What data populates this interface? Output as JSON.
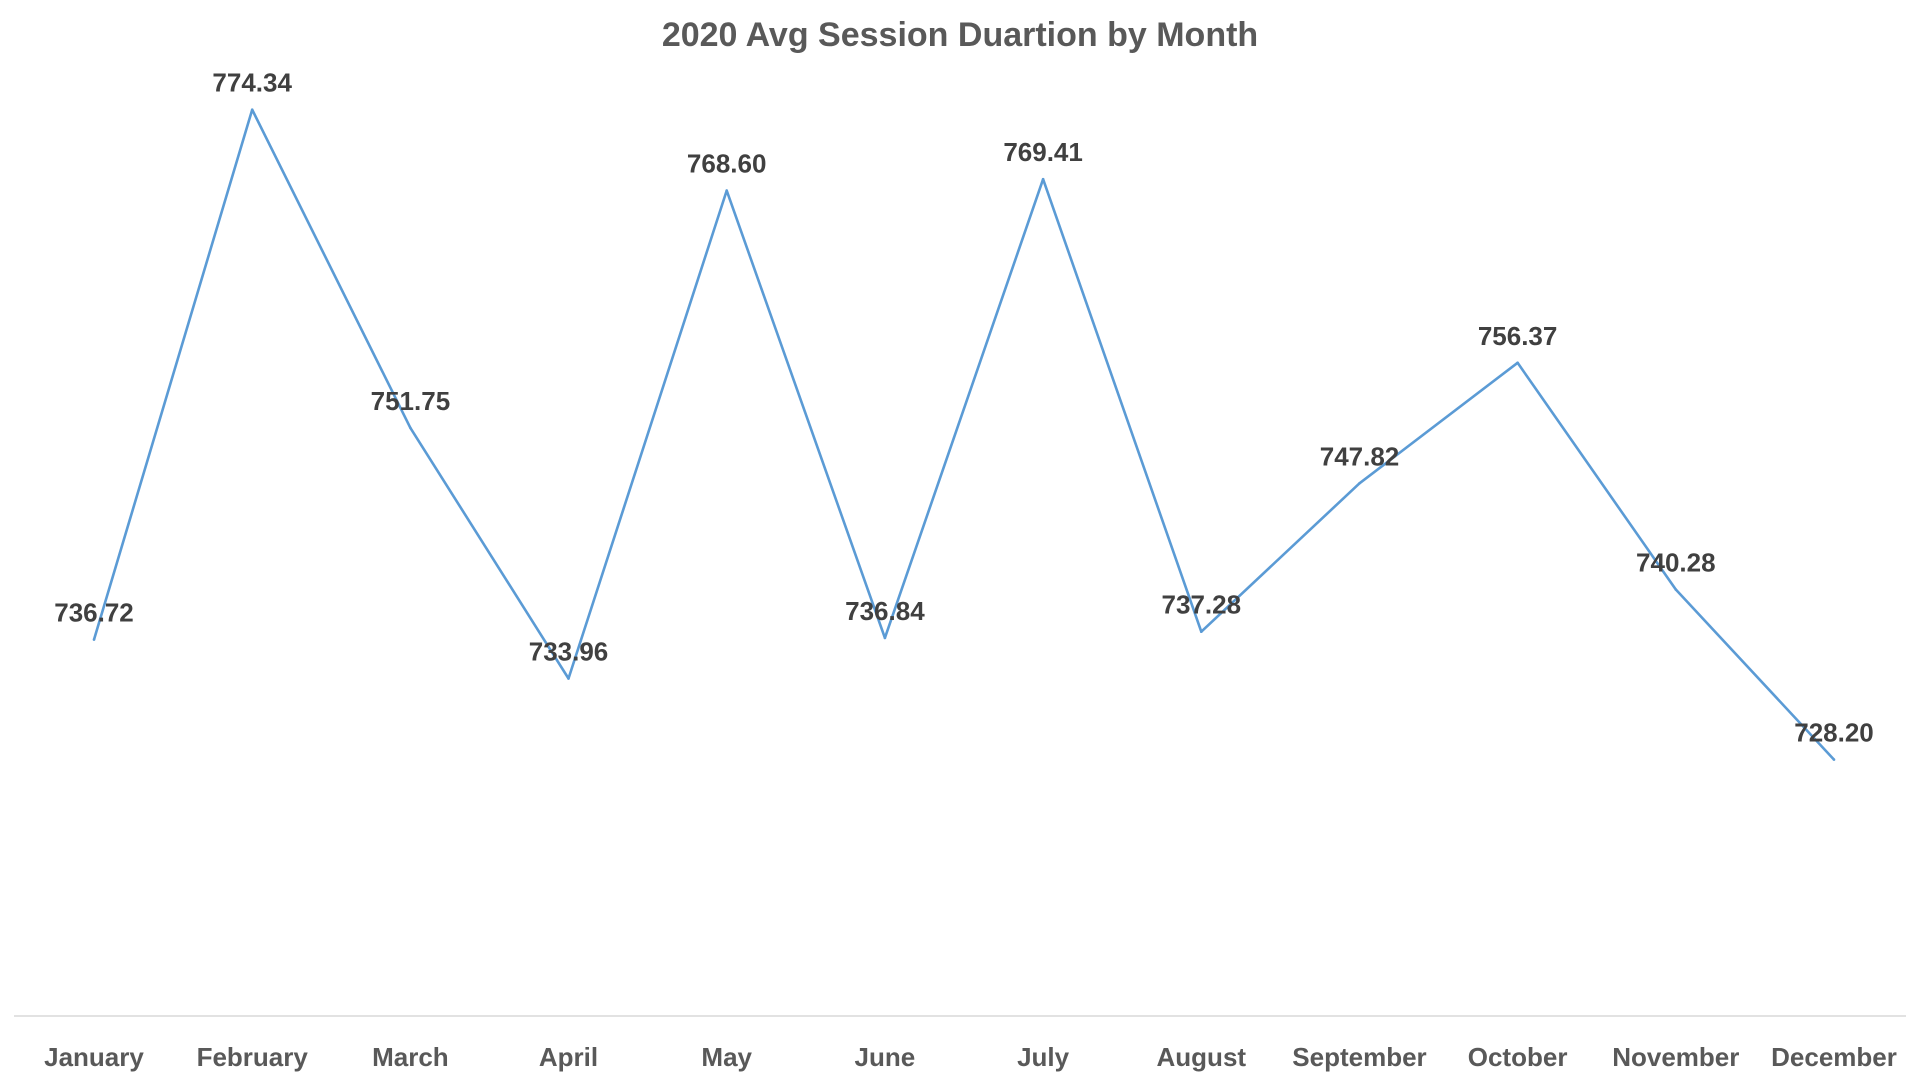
{
  "chart_data": {
    "type": "line",
    "title": "2020 Avg Session Duartion by Month",
    "categories": [
      "January",
      "February",
      "March",
      "April",
      "May",
      "June",
      "July",
      "August",
      "September",
      "October",
      "November",
      "December"
    ],
    "series": [
      {
        "values": [
          736.72,
          774.34,
          751.75,
          733.96,
          768.6,
          736.84,
          769.41,
          737.28,
          747.82,
          756.37,
          740.28,
          728.2
        ],
        "labels": [
          "736.72",
          "774.34",
          "751.75",
          "733.96",
          "768.60",
          "736.84",
          "769.41",
          "737.28",
          "747.82",
          "756.37",
          "740.28",
          "728.20"
        ],
        "color": "#5b9bd5"
      }
    ],
    "ylim": [
      710,
      780
    ],
    "grid": false,
    "legend": "none",
    "xlabel": "",
    "ylabel": ""
  }
}
